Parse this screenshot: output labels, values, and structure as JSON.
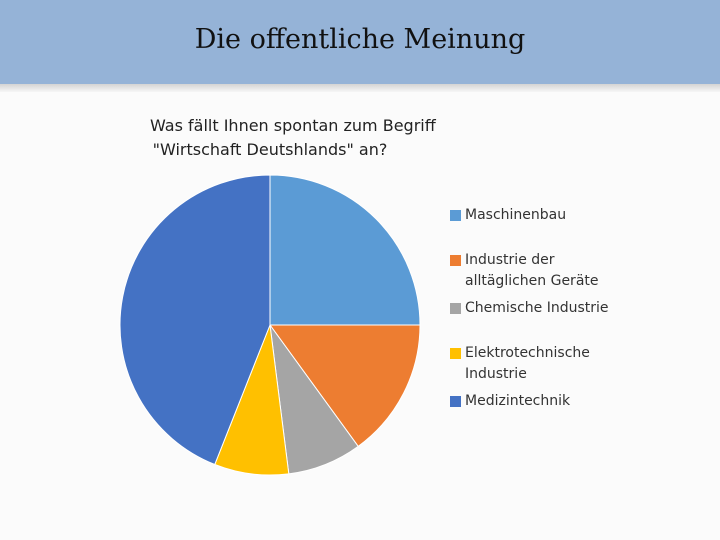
{
  "slide": {
    "title": "Die offentliche Meinung"
  },
  "chart_data": {
    "type": "pie",
    "title_lines": [
      "Was fällt Ihnen spontan zum Begriff",
      "\"Wirtschaft Deutshlands\" an?"
    ],
    "categories": [
      "Maschinenbau",
      "Industrie der alltäglichen Geräte",
      "Chemische Industrie",
      "Elektrotechnische Industrie",
      "Medizintechnik"
    ],
    "legend_lines": [
      [
        "Maschinenbau"
      ],
      [
        "Industrie der",
        "alltäglichen Geräte"
      ],
      [
        "Chemische Industrie"
      ],
      [
        "Elektrotechnische",
        "Industrie"
      ],
      [
        "Medizintechnik"
      ]
    ],
    "values": [
      25,
      15,
      8,
      8,
      44
    ],
    "colors": [
      "#5b9bd5",
      "#ed7d31",
      "#a5a5a5",
      "#ffc000",
      "#4472c4"
    ],
    "legend_position": "right",
    "start_angle": "12 o'clock",
    "direction": "clockwise"
  }
}
